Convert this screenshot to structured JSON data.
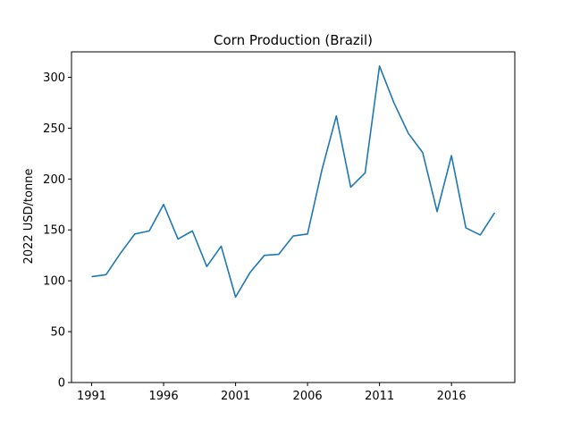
{
  "chart_data": {
    "type": "line",
    "title": "Corn Production (Brazil)",
    "xlabel": "",
    "ylabel": "2022 USD/tonne",
    "x": [
      1991,
      1992,
      1993,
      1994,
      1995,
      1996,
      1997,
      1998,
      1999,
      2000,
      2001,
      2002,
      2003,
      2004,
      2005,
      2006,
      2007,
      2008,
      2009,
      2010,
      2011,
      2012,
      2013,
      2014,
      2015,
      2016,
      2017,
      2018,
      2019
    ],
    "series": [
      {
        "values": [
          104,
          106,
          127,
          146,
          149,
          175,
          141,
          149,
          114,
          134,
          84,
          108,
          125,
          126,
          144,
          146,
          209,
          262,
          192,
          206,
          311,
          275,
          245,
          226,
          168,
          223,
          152,
          145,
          167
        ],
        "color": "#1f77b4"
      }
    ],
    "xlim": [
      1989.6,
      2020.4
    ],
    "ylim": [
      0,
      325
    ],
    "xticks": [
      1991,
      1996,
      2001,
      2006,
      2011,
      2016
    ],
    "xtick_labels": [
      "1991",
      "1996",
      "2001",
      "2006",
      "2011",
      "2016"
    ],
    "yticks": [
      0,
      50,
      100,
      150,
      200,
      250,
      300
    ],
    "ytick_labels": [
      "0",
      "50",
      "100",
      "150",
      "200",
      "250",
      "300"
    ],
    "grid": false,
    "legend": "none"
  }
}
